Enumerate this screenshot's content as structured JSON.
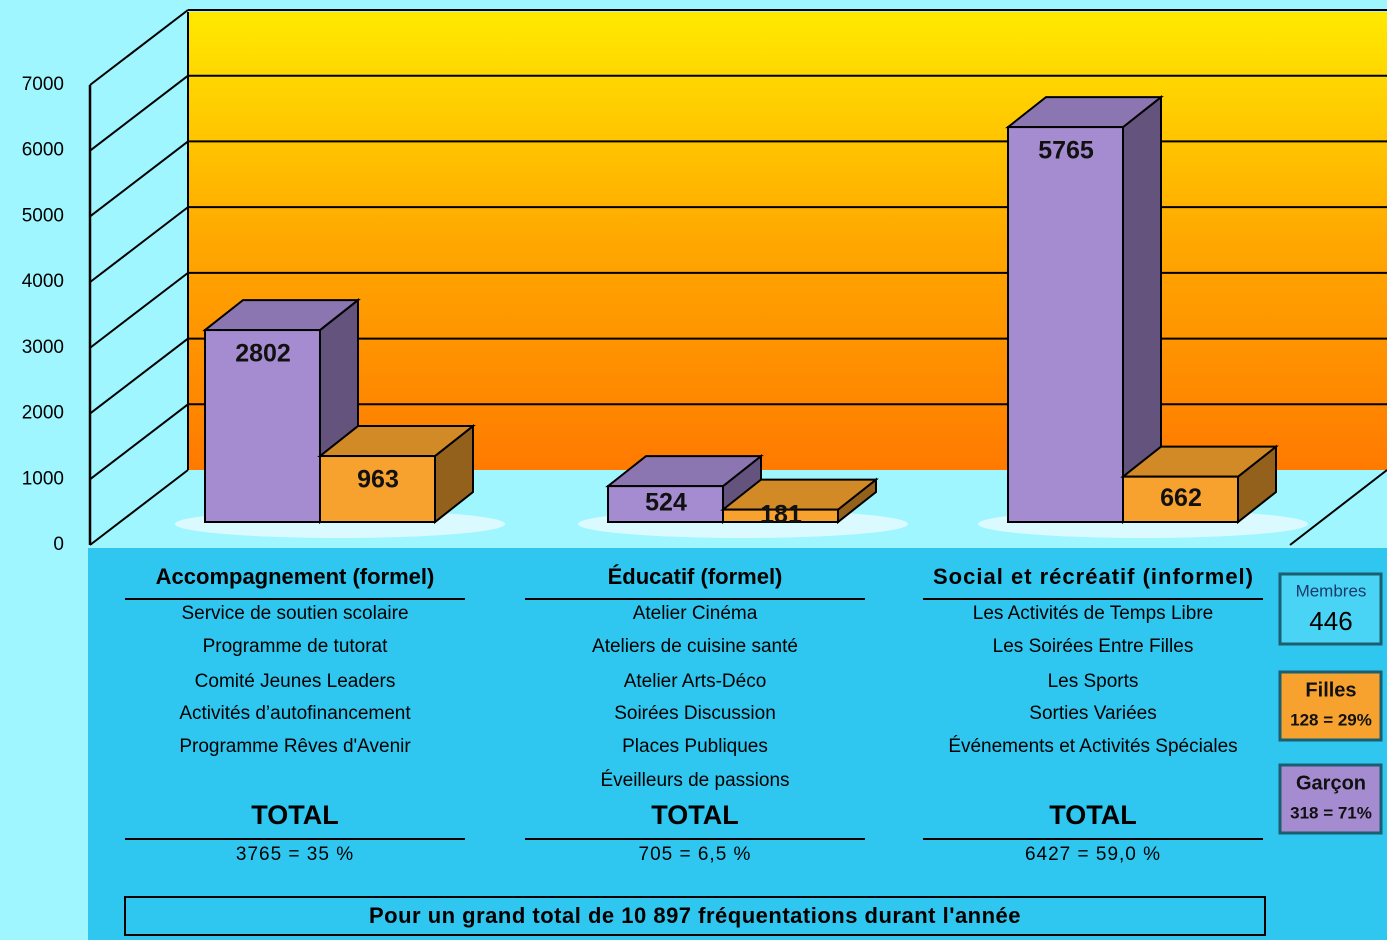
{
  "chart_data": {
    "type": "bar",
    "categories": [
      "Accompagnement (formel)",
      "Éducatif (formel)",
      "Social et récréatif (informel)"
    ],
    "series": [
      {
        "name": "Garçon",
        "color": "#a58bd0",
        "values": [
          2802,
          524,
          5765
        ]
      },
      {
        "name": "Filles",
        "color": "#f7a22e",
        "values": [
          963,
          181,
          662
        ]
      }
    ],
    "ylim": [
      0,
      7000
    ],
    "yticks": [
      0,
      1000,
      2000,
      3000,
      4000,
      5000,
      6000,
      7000
    ],
    "grid": true
  },
  "groups": [
    {
      "items": [
        "Service de soutien scolaire",
        "Programme de tutorat",
        "Comité Jeunes Leaders",
        "Activités d’autofinancement",
        "Programme Rêves d'Avenir"
      ],
      "total_label": "TOTAL",
      "total": "3765 = 35 %"
    },
    {
      "items": [
        "Atelier Cinéma",
        "Ateliers de cuisine santé",
        "Atelier Arts-Déco",
        "Soirées Discussion",
        "Places Publiques",
        "Éveilleurs de passions"
      ],
      "total_label": "TOTAL",
      "total": "705 = 6,5 %"
    },
    {
      "items": [
        "Les Activités de Temps Libre",
        "Les Soirées Entre Filles",
        "Les Sports",
        "Sorties Variées",
        "Événements et Activités Spéciales"
      ],
      "total_label": "TOTAL",
      "total": "6427 = 59,0 %"
    }
  ],
  "members": {
    "label": "Membres",
    "value": "446"
  },
  "legend_details": [
    "318 = 71%",
    "128 = 29%"
  ],
  "footer": "Pour un grand total de 10 897 fréquentations durant l'année"
}
